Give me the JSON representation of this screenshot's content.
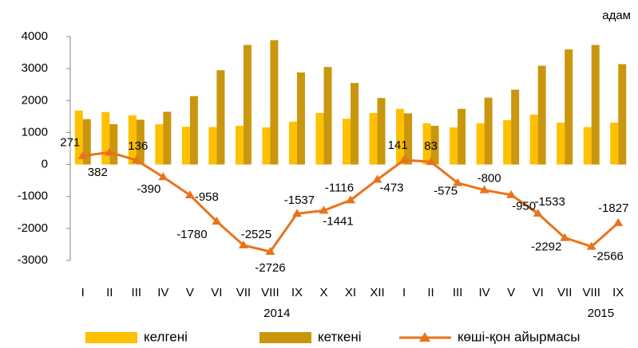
{
  "chart_data": {
    "type": "bar_line",
    "unit_label": "адам",
    "categories": [
      "I",
      "II",
      "III",
      "IV",
      "V",
      "VI",
      "VII",
      "VIII",
      "IX",
      "X",
      "XI",
      "XII",
      "I",
      "II",
      "III",
      "IV",
      "V",
      "VI",
      "VII",
      "VIII",
      "IX"
    ],
    "year_labels": [
      "2014",
      "2015"
    ],
    "ylim": [
      -3000,
      4000
    ],
    "yticks": [
      -3000,
      -2000,
      -1000,
      0,
      1000,
      2000,
      3000,
      4000
    ],
    "series": [
      {
        "name": "келгені",
        "type": "bar",
        "color": "#FFC000",
        "values": [
          1690,
          1640,
          1540,
          1260,
          1180,
          1170,
          1210,
          1160,
          1340,
          1610,
          1430,
          1610,
          1740,
          1290,
          1160,
          1290,
          1390,
          1560,
          1310,
          1170,
          1310
        ]
      },
      {
        "name": "кеткені",
        "type": "bar",
        "color": "#C9960E",
        "values": [
          1420,
          1260,
          1400,
          1650,
          2140,
          2950,
          3740,
          3890,
          2880,
          3050,
          2550,
          2080,
          1600,
          1210,
          1740,
          2090,
          2340,
          3090,
          3600,
          3740,
          3140
        ]
      },
      {
        "name": "көші-қон айырмасы",
        "type": "line",
        "color": "#E8731B",
        "values": [
          271,
          382,
          136,
          -390,
          -958,
          -1780,
          -2525,
          -2726,
          -1537,
          -1441,
          -1116,
          -473,
          141,
          83,
          -575,
          -800,
          -950,
          -1533,
          -2292,
          -2566,
          -1827
        ]
      }
    ]
  }
}
